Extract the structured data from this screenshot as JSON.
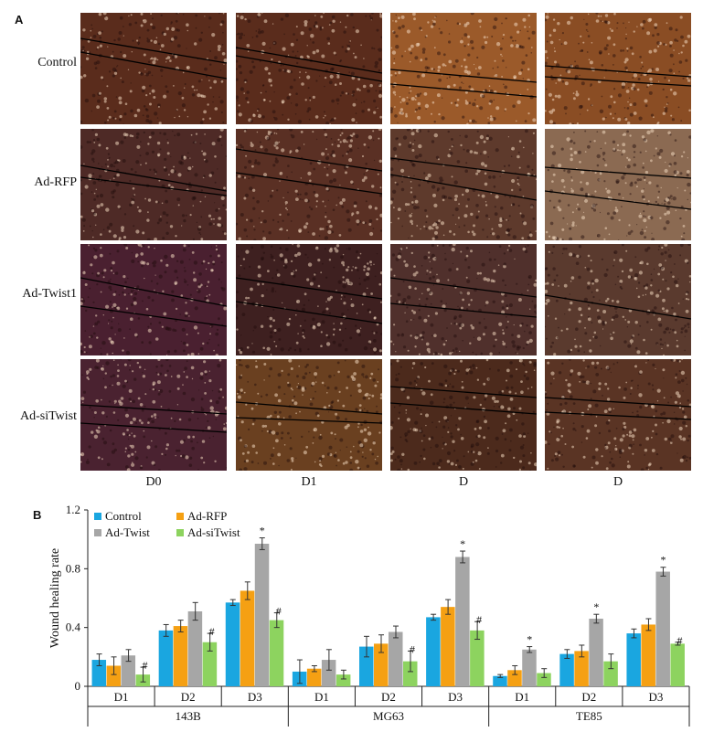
{
  "panels": {
    "a_label": "A",
    "b_label": "B"
  },
  "micrographs": {
    "rows": [
      {
        "label": "Control",
        "tones": [
          "#5a2c1c",
          "#5a2c1c",
          "#9b5a2a",
          "#8a4d24"
        ]
      },
      {
        "label": "Ad-RFP",
        "tones": [
          "#4e2a26",
          "#5a3024",
          "#5e3a2c",
          "#8b6a52"
        ]
      },
      {
        "label": "Ad-Twist1",
        "tones": [
          "#4a2030",
          "#3e2020",
          "#50302c",
          "#5a3a2e"
        ]
      },
      {
        "label": "Ad-siTwist",
        "tones": [
          "#4a2230",
          "#6a4020",
          "#4c2a1c",
          "#5a3424"
        ]
      }
    ],
    "columns": [
      "D0",
      "D1",
      "D",
      "D"
    ]
  },
  "chart_data": {
    "type": "bar",
    "ylabel": "Wound healing rate",
    "ylim": [
      0,
      1.2
    ],
    "yticks": [
      "0",
      "0.4",
      "0.8",
      "1.2"
    ],
    "groups": [
      {
        "cell_line": "143B",
        "days": [
          "D1",
          "D2",
          "D3"
        ]
      },
      {
        "cell_line": "MG63",
        "days": [
          "D1",
          "D2",
          "D3"
        ]
      },
      {
        "cell_line": "TE85",
        "days": [
          "D1",
          "D2",
          "D3"
        ]
      }
    ],
    "categories": [
      "143B D1",
      "143B D2",
      "143B D3",
      "MG63 D1",
      "MG63 D2",
      "MG63 D3",
      "TE85 D1",
      "TE85 D2",
      "TE85 D3"
    ],
    "series": [
      {
        "name": "Control",
        "color": "#1aa6e0",
        "values": [
          0.18,
          0.38,
          0.57,
          0.1,
          0.27,
          0.47,
          0.07,
          0.22,
          0.36
        ],
        "errors": [
          0.04,
          0.04,
          0.02,
          0.08,
          0.07,
          0.02,
          0.01,
          0.03,
          0.03
        ],
        "marks": [
          "",
          "",
          "",
          "",
          "",
          "",
          "",
          "",
          ""
        ]
      },
      {
        "name": "Ad-RFP",
        "color": "#f5a013",
        "values": [
          0.14,
          0.41,
          0.65,
          0.12,
          0.29,
          0.54,
          0.11,
          0.24,
          0.42
        ],
        "errors": [
          0.06,
          0.04,
          0.06,
          0.02,
          0.06,
          0.05,
          0.03,
          0.04,
          0.04
        ],
        "marks": [
          "",
          "",
          "",
          "",
          "",
          "",
          "",
          "",
          ""
        ]
      },
      {
        "name": "Ad-Twist",
        "color": "#a6a6a6",
        "values": [
          0.21,
          0.51,
          0.97,
          0.18,
          0.37,
          0.88,
          0.25,
          0.46,
          0.78
        ],
        "errors": [
          0.04,
          0.06,
          0.04,
          0.07,
          0.04,
          0.04,
          0.02,
          0.03,
          0.03
        ],
        "marks": [
          "",
          "",
          "*",
          "",
          "",
          "*",
          "*",
          "*",
          "*"
        ]
      },
      {
        "name": "Ad-siTwist",
        "color": "#8dd35f",
        "values": [
          0.08,
          0.3,
          0.45,
          0.08,
          0.17,
          0.38,
          0.09,
          0.17,
          0.29
        ],
        "errors": [
          0.05,
          0.06,
          0.05,
          0.03,
          0.07,
          0.06,
          0.03,
          0.05,
          0.01
        ],
        "marks": [
          "#",
          "#",
          "#",
          "",
          "#",
          "#",
          "",
          "",
          "#"
        ]
      }
    ]
  }
}
